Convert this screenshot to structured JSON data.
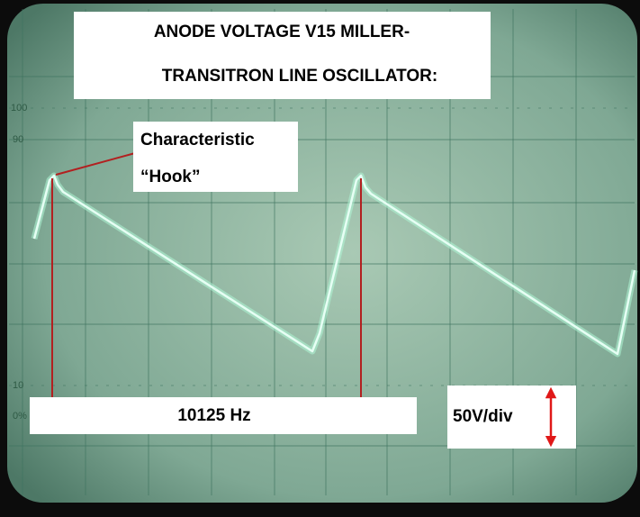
{
  "title": {
    "line1": "ANODE VOLTAGE V15 MILLER-",
    "line2": "TRANSITRON LINE OSCILLATOR:"
  },
  "annotation": {
    "line1": "Characteristic",
    "line2": "“Hook”"
  },
  "frequency": "10125 Hz",
  "scale": "50V/div",
  "graticule": [
    "100",
    "90",
    "10",
    "0%"
  ]
}
